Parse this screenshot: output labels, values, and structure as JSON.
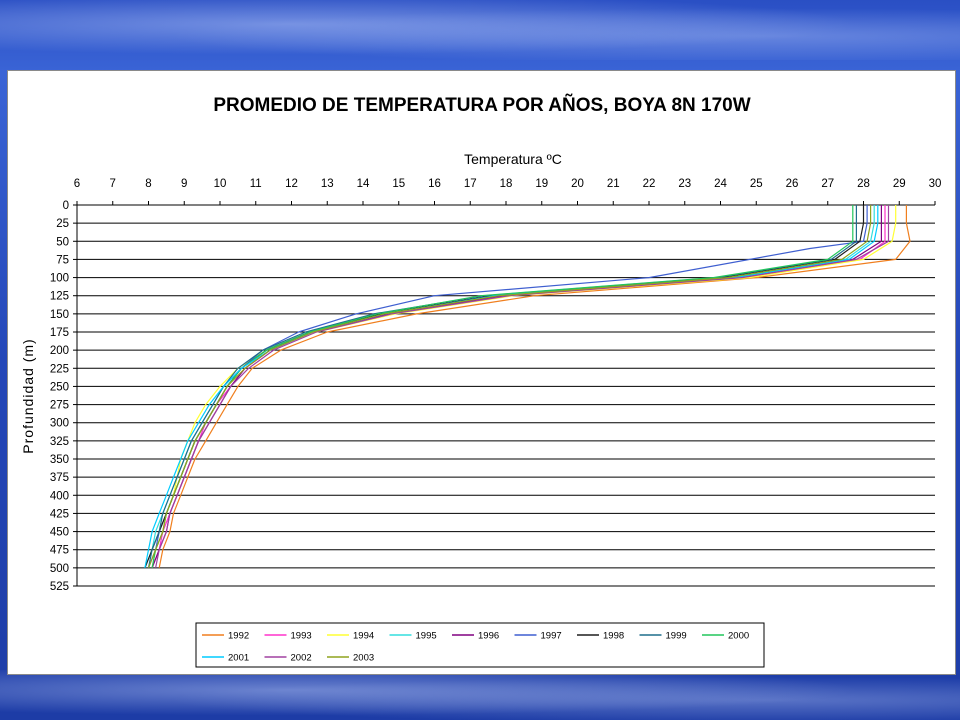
{
  "chart_data": {
    "type": "line",
    "title": "PROMEDIO DE TEMPERATURA POR AÑOS, BOYA 8N 170W",
    "xlabel": "Temperatura ºC",
    "ylabel": "Profundidad (m)",
    "x_axis_position": "top",
    "y_axis_inverted": true,
    "xlim": [
      6,
      30
    ],
    "ylim": [
      0,
      525
    ],
    "x_ticks": [
      "6",
      "7",
      "8",
      "9",
      "10",
      "11",
      "12",
      "13",
      "14",
      "15",
      "16",
      "17",
      "18",
      "19",
      "20",
      "21",
      "22",
      "23",
      "24",
      "25",
      "26",
      "27",
      "28",
      "29",
      "30"
    ],
    "y_ticks": [
      "0",
      "25",
      "50",
      "75",
      "100",
      "125",
      "150",
      "175",
      "200",
      "225",
      "250",
      "275",
      "300",
      "325",
      "350",
      "375",
      "400",
      "425",
      "450",
      "475",
      "500",
      "525"
    ],
    "grid": "horizontal",
    "legend_position": "bottom",
    "series": [
      {
        "name": "1992",
        "color": "#f07f1e",
        "points": [
          [
            29.2,
            0
          ],
          [
            29.2,
            25
          ],
          [
            29.3,
            50
          ],
          [
            28.9,
            75
          ],
          [
            25.0,
            100
          ],
          [
            18.8,
            125
          ],
          [
            15.5,
            150
          ],
          [
            13.0,
            175
          ],
          [
            11.7,
            200
          ],
          [
            10.9,
            225
          ],
          [
            10.5,
            250
          ],
          [
            10.2,
            275
          ],
          [
            9.9,
            300
          ],
          [
            9.6,
            325
          ],
          [
            9.3,
            350
          ],
          [
            9.1,
            375
          ],
          [
            8.9,
            400
          ],
          [
            8.7,
            425
          ],
          [
            8.6,
            450
          ],
          [
            8.4,
            475
          ],
          [
            8.3,
            500
          ]
        ]
      },
      {
        "name": "1993",
        "color": "#ff33cc",
        "points": [
          [
            28.6,
            0
          ],
          [
            28.6,
            25
          ],
          [
            28.6,
            50
          ],
          [
            27.9,
            75
          ],
          [
            24.6,
            100
          ],
          [
            18.0,
            125
          ],
          [
            14.8,
            150
          ],
          [
            12.6,
            175
          ],
          [
            11.4,
            200
          ],
          [
            10.7,
            225
          ],
          [
            10.3,
            250
          ],
          [
            9.9,
            275
          ],
          [
            9.6,
            300
          ],
          [
            9.4,
            325
          ],
          [
            9.2,
            350
          ],
          [
            9.0,
            375
          ],
          [
            8.8,
            400
          ],
          [
            8.6,
            425
          ],
          [
            8.4,
            450
          ],
          [
            8.3,
            475
          ],
          [
            8.1,
            500
          ]
        ]
      },
      {
        "name": "1994",
        "color": "#ffff33",
        "points": [
          [
            28.9,
            0
          ],
          [
            28.9,
            25
          ],
          [
            28.8,
            50
          ],
          [
            28.0,
            75
          ],
          [
            24.8,
            100
          ],
          [
            18.2,
            125
          ],
          [
            14.9,
            150
          ],
          [
            12.7,
            175
          ],
          [
            11.3,
            200
          ],
          [
            10.5,
            225
          ],
          [
            10.0,
            250
          ],
          [
            9.6,
            275
          ],
          [
            9.3,
            300
          ],
          [
            9.1,
            325
          ],
          [
            8.9,
            350
          ],
          [
            8.8,
            375
          ],
          [
            8.7,
            400
          ],
          [
            8.5,
            425
          ],
          [
            8.4,
            450
          ],
          [
            8.2,
            475
          ],
          [
            8.1,
            500
          ]
        ]
      },
      {
        "name": "1995",
        "color": "#33dddd",
        "points": [
          [
            28.3,
            0
          ],
          [
            28.3,
            25
          ],
          [
            28.2,
            50
          ],
          [
            27.5,
            75
          ],
          [
            24.3,
            100
          ],
          [
            17.8,
            125
          ],
          [
            14.6,
            150
          ],
          [
            12.5,
            175
          ],
          [
            11.3,
            200
          ],
          [
            10.6,
            225
          ],
          [
            10.1,
            250
          ],
          [
            9.8,
            275
          ],
          [
            9.5,
            300
          ],
          [
            9.2,
            325
          ],
          [
            9.0,
            350
          ],
          [
            8.8,
            375
          ],
          [
            8.6,
            400
          ],
          [
            8.4,
            425
          ],
          [
            8.2,
            450
          ],
          [
            8.1,
            475
          ],
          [
            7.9,
            500
          ]
        ]
      },
      {
        "name": "1996",
        "color": "#800080",
        "points": [
          [
            28.5,
            0
          ],
          [
            28.5,
            25
          ],
          [
            28.5,
            50
          ],
          [
            27.7,
            75
          ],
          [
            24.5,
            100
          ],
          [
            17.9,
            125
          ],
          [
            14.7,
            150
          ],
          [
            12.6,
            175
          ],
          [
            11.4,
            200
          ],
          [
            10.7,
            225
          ],
          [
            10.3,
            250
          ],
          [
            10.0,
            275
          ],
          [
            9.7,
            300
          ],
          [
            9.4,
            325
          ],
          [
            9.2,
            350
          ],
          [
            9.0,
            375
          ],
          [
            8.8,
            400
          ],
          [
            8.6,
            425
          ],
          [
            8.5,
            450
          ],
          [
            8.3,
            475
          ],
          [
            8.1,
            500
          ]
        ]
      },
      {
        "name": "1997",
        "color": "#3f5fd0",
        "points": [
          [
            28.1,
            0
          ],
          [
            28.1,
            25
          ],
          [
            28.0,
            50
          ],
          [
            26.5,
            60
          ],
          [
            22.0,
            100
          ],
          [
            16.0,
            125
          ],
          [
            13.8,
            150
          ],
          [
            12.2,
            175
          ],
          [
            11.2,
            200
          ],
          [
            10.6,
            225
          ],
          [
            10.2,
            250
          ],
          [
            9.9,
            275
          ],
          [
            9.6,
            300
          ],
          [
            9.3,
            325
          ],
          [
            9.1,
            350
          ],
          [
            8.9,
            375
          ],
          [
            8.7,
            400
          ],
          [
            8.5,
            425
          ],
          [
            8.3,
            450
          ],
          [
            8.2,
            475
          ],
          [
            8.0,
            500
          ]
        ]
      },
      {
        "name": "1998",
        "color": "#1e1e1e",
        "points": [
          [
            28.0,
            0
          ],
          [
            28.0,
            25
          ],
          [
            27.9,
            50
          ],
          [
            27.2,
            75
          ],
          [
            24.0,
            100
          ],
          [
            17.6,
            125
          ],
          [
            14.5,
            150
          ],
          [
            12.5,
            175
          ],
          [
            11.3,
            200
          ],
          [
            10.6,
            225
          ],
          [
            10.2,
            250
          ],
          [
            9.9,
            275
          ],
          [
            9.6,
            300
          ],
          [
            9.3,
            325
          ],
          [
            9.1,
            350
          ],
          [
            8.9,
            375
          ],
          [
            8.7,
            400
          ],
          [
            8.5,
            425
          ],
          [
            8.3,
            450
          ],
          [
            8.1,
            475
          ],
          [
            7.9,
            500
          ]
        ]
      },
      {
        "name": "1999",
        "color": "#1f6e8c",
        "points": [
          [
            27.8,
            0
          ],
          [
            27.8,
            25
          ],
          [
            27.8,
            50
          ],
          [
            27.1,
            75
          ],
          [
            23.9,
            100
          ],
          [
            17.4,
            125
          ],
          [
            14.3,
            150
          ],
          [
            12.4,
            175
          ],
          [
            11.2,
            200
          ],
          [
            10.5,
            225
          ],
          [
            10.1,
            250
          ],
          [
            9.8,
            275
          ],
          [
            9.5,
            300
          ],
          [
            9.2,
            325
          ],
          [
            9.0,
            350
          ],
          [
            8.8,
            375
          ],
          [
            8.6,
            400
          ],
          [
            8.4,
            425
          ],
          [
            8.3,
            450
          ],
          [
            8.1,
            475
          ],
          [
            8.0,
            500
          ]
        ]
      },
      {
        "name": "2000",
        "color": "#22c65b",
        "points": [
          [
            27.7,
            0
          ],
          [
            27.7,
            25
          ],
          [
            27.7,
            50
          ],
          [
            27.0,
            75
          ],
          [
            23.8,
            100
          ],
          [
            17.3,
            125
          ],
          [
            14.4,
            150
          ],
          [
            12.5,
            175
          ],
          [
            11.3,
            200
          ],
          [
            10.6,
            225
          ],
          [
            10.2,
            250
          ],
          [
            9.9,
            275
          ],
          [
            9.6,
            300
          ],
          [
            9.3,
            325
          ],
          [
            9.1,
            350
          ],
          [
            8.9,
            375
          ],
          [
            8.7,
            400
          ],
          [
            8.5,
            425
          ],
          [
            8.4,
            450
          ],
          [
            8.2,
            475
          ],
          [
            8.1,
            500
          ]
        ]
      },
      {
        "name": "2001",
        "color": "#00ccff",
        "points": [
          [
            28.4,
            0
          ],
          [
            28.4,
            25
          ],
          [
            28.3,
            50
          ],
          [
            27.6,
            75
          ],
          [
            24.4,
            100
          ],
          [
            17.7,
            125
          ],
          [
            14.6,
            150
          ],
          [
            12.6,
            175
          ],
          [
            11.4,
            200
          ],
          [
            10.6,
            225
          ],
          [
            10.1,
            250
          ],
          [
            9.7,
            275
          ],
          [
            9.4,
            300
          ],
          [
            9.1,
            325
          ],
          [
            8.9,
            350
          ],
          [
            8.7,
            375
          ],
          [
            8.5,
            400
          ],
          [
            8.3,
            425
          ],
          [
            8.1,
            450
          ],
          [
            8.0,
            475
          ],
          [
            7.9,
            500
          ]
        ]
      },
      {
        "name": "2002",
        "color": "#a040a0",
        "points": [
          [
            28.7,
            0
          ],
          [
            28.7,
            25
          ],
          [
            28.7,
            50
          ],
          [
            27.8,
            75
          ],
          [
            24.6,
            100
          ],
          [
            18.1,
            125
          ],
          [
            14.8,
            150
          ],
          [
            12.7,
            175
          ],
          [
            11.5,
            200
          ],
          [
            10.8,
            225
          ],
          [
            10.3,
            250
          ],
          [
            10.0,
            275
          ],
          [
            9.7,
            300
          ],
          [
            9.4,
            325
          ],
          [
            9.2,
            350
          ],
          [
            9.0,
            375
          ],
          [
            8.8,
            400
          ],
          [
            8.6,
            425
          ],
          [
            8.5,
            450
          ],
          [
            8.3,
            475
          ],
          [
            8.2,
            500
          ]
        ]
      },
      {
        "name": "2003",
        "color": "#8fa31e",
        "points": [
          [
            28.2,
            0
          ],
          [
            28.2,
            25
          ],
          [
            28.1,
            50
          ],
          [
            27.4,
            75
          ],
          [
            24.2,
            100
          ],
          [
            17.8,
            125
          ],
          [
            14.6,
            150
          ],
          [
            12.6,
            175
          ],
          [
            11.4,
            200
          ],
          [
            10.7,
            225
          ],
          [
            10.2,
            250
          ],
          [
            9.9,
            275
          ],
          [
            9.6,
            300
          ],
          [
            9.3,
            325
          ],
          [
            9.1,
            350
          ],
          [
            8.9,
            375
          ],
          [
            8.7,
            400
          ],
          [
            8.5,
            425
          ],
          [
            8.4,
            450
          ],
          [
            8.2,
            475
          ],
          [
            8.0,
            500
          ]
        ]
      }
    ]
  }
}
